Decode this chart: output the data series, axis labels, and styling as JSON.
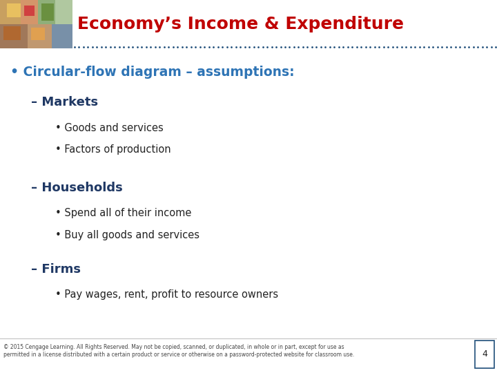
{
  "title": "Economy’s Income & Expenditure",
  "title_color": "#C00000",
  "title_fontsize": 18,
  "dot_line_color": "#1F4E79",
  "background_color": "#FFFFFF",
  "bullet1_text": "• Circular-flow diagram – assumptions:",
  "bullet1_color": "#2E74B5",
  "bullet1_fontsize": 13.5,
  "section1_header": "– Markets",
  "section1_color": "#1F3864",
  "section1_fontsize": 13,
  "section1_items": [
    "Goods and services",
    "Factors of production"
  ],
  "section2_header": "– Households",
  "section2_color": "#1F3864",
  "section2_fontsize": 13,
  "section2_items": [
    "Spend all of their income",
    "Buy all goods and services"
  ],
  "section3_header": "– Firms",
  "section3_color": "#1F3864",
  "section3_fontsize": 13,
  "section3_items": [
    "Pay wages, rent, profit to resource owners"
  ],
  "item_color": "#222222",
  "item_fontsize": 10.5,
  "footer_text": "© 2015 Cengage Learning. All Rights Reserved. May not be copied, scanned, or duplicated, in whole or in part, except for use as\npermitted in a license distributed with a certain product or service or otherwise on a password-protected website for classroom use.",
  "footer_color": "#444444",
  "footer_fontsize": 5.5,
  "page_number": "4",
  "page_number_color": "#1F4E79",
  "page_number_fontsize": 9
}
